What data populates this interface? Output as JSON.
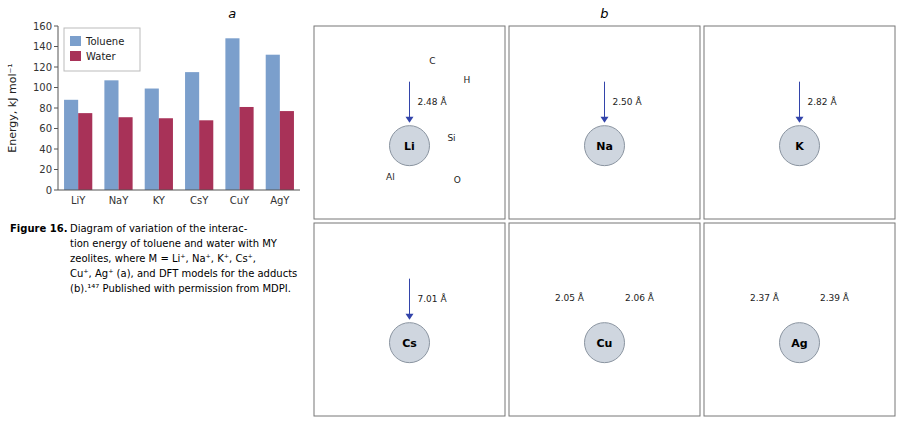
{
  "chart_data": {
    "type": "bar",
    "categories": [
      "LiY",
      "NaY",
      "KY",
      "CsY",
      "CuY",
      "AgY"
    ],
    "series": [
      {
        "name": "Toluene",
        "color": "#7B9FCC",
        "values": [
          88,
          107,
          99,
          115,
          148,
          132
        ]
      },
      {
        "name": "Water",
        "color": "#A83258",
        "values": [
          75,
          71,
          70,
          68,
          81,
          77
        ]
      }
    ],
    "ylabel": "Energy, kJ mol⁻¹",
    "ylim": [
      0,
      160
    ],
    "yticks": [
      0,
      20,
      40,
      60,
      80,
      100,
      120,
      140,
      160
    ],
    "grid": false,
    "legend": "upper left",
    "annotations": [
      "a",
      "b",
      "Figure 16.",
      "Diagram of variation of the interac-\ntion energy of toluene and water with MY\nzeolites, where  M = Li⁺,  Na⁺,  K⁺,  Cs⁺,\nCu⁺, Ag⁺ (a), and DFT models for the adducts\n(b).¹⁴⁷ Published with permission from MDPI.",
      [
        "Li",
        [
          "2.48 Å"
        ],
        [
          "C",
          "H",
          "Si",
          "Al",
          "O"
        ]
      ],
      [
        "Na",
        [
          "2.50 Å"
        ]
      ],
      [
        "K",
        [
          "2.82 Å"
        ]
      ],
      [
        "Cs",
        [
          "7.01 Å"
        ]
      ],
      [
        "Cu",
        [
          "2.05 Å",
          "2.06 Å"
        ]
      ],
      [
        "Ag",
        [
          "2.37 Å",
          "2.39 Å"
        ]
      ]
    ]
  }
}
